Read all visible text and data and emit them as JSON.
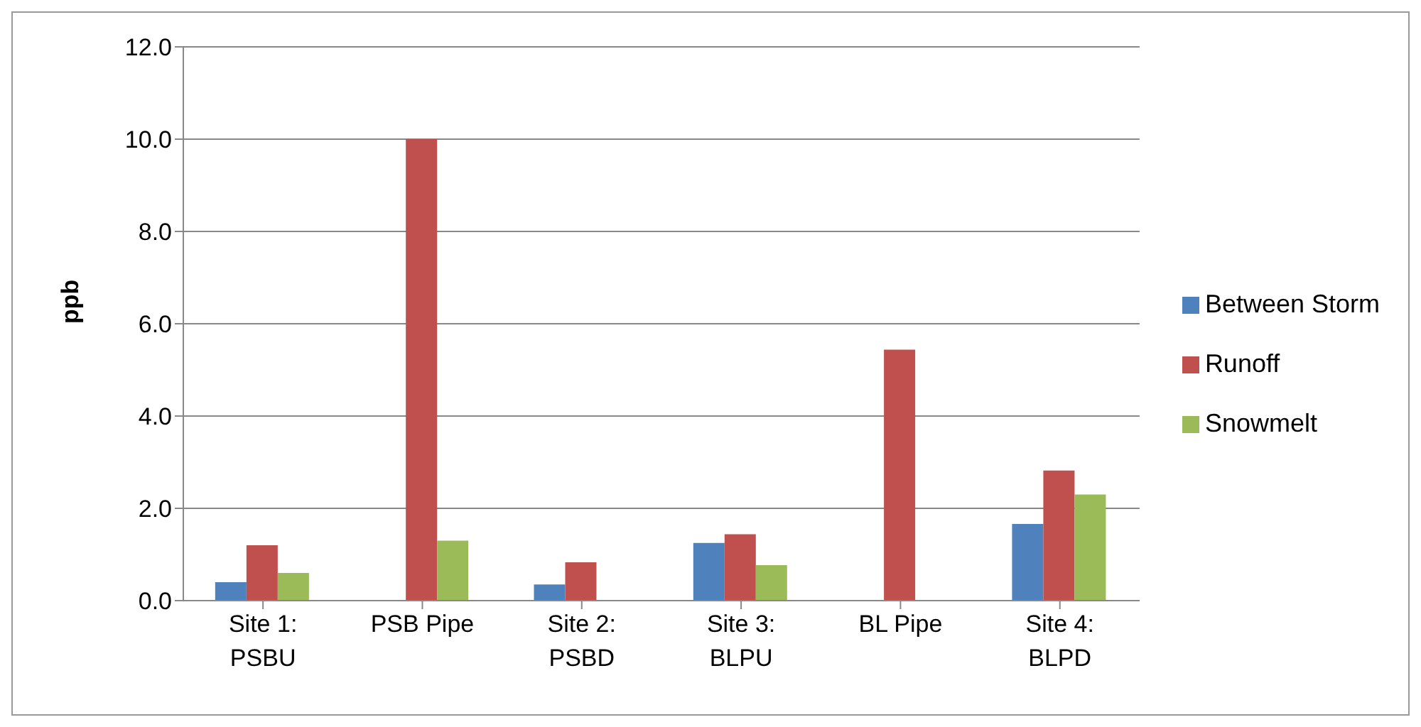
{
  "chart_data": {
    "type": "bar",
    "categories": [
      "Site 1: PSBU",
      "PSB Pipe",
      "Site 2: PSBD",
      "Site 3: BLPU",
      "BL Pipe",
      "Site 4: BLPD"
    ],
    "series": [
      {
        "name": "Between Storm",
        "color": "#4f81bd",
        "values": [
          0.4,
          null,
          0.35,
          1.25,
          null,
          1.66
        ]
      },
      {
        "name": "Runoff",
        "color": "#c0504d",
        "values": [
          1.2,
          10.0,
          0.83,
          1.44,
          5.44,
          2.82
        ]
      },
      {
        "name": "Snowmelt",
        "color": "#9bbb59",
        "values": [
          0.6,
          1.3,
          null,
          0.77,
          null,
          2.3
        ]
      }
    ],
    "ylabel": "ppb",
    "ylim": [
      0,
      12
    ],
    "yticks": [
      {
        "value": 0,
        "label": "0.0"
      },
      {
        "value": 2,
        "label": "2.0"
      },
      {
        "value": 4,
        "label": "4.0"
      },
      {
        "value": 6,
        "label": "6.0"
      },
      {
        "value": 8,
        "label": "8.0"
      },
      {
        "value": 10,
        "label": "10.0"
      },
      {
        "value": 12,
        "label": "12.0"
      }
    ],
    "grid": "y",
    "legend": "right"
  }
}
